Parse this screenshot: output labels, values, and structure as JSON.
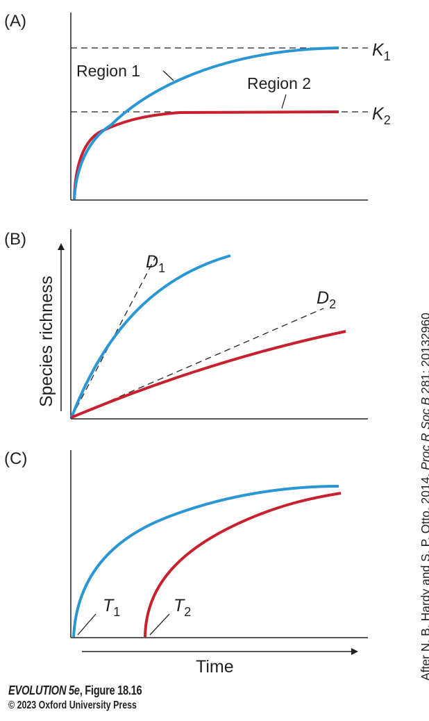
{
  "panels": {
    "a": {
      "tag": "(A)",
      "k1": "K",
      "k1_sub": "1",
      "k2": "K",
      "k2_sub": "2",
      "region1": "Region 1",
      "region2": "Region 2"
    },
    "b": {
      "tag": "(B)",
      "ylabel": "Species richness",
      "d1": "D",
      "d1_sub": "1",
      "d2": "D",
      "d2_sub": "2"
    },
    "c": {
      "tag": "(C)",
      "xlabel": "Time",
      "t1": "T",
      "t1_sub": "1",
      "t2": "T",
      "t2_sub": "2"
    }
  },
  "colors": {
    "region1": "#2a96d4",
    "region2": "#c8202f",
    "axis": "#231f20"
  },
  "footer": {
    "book": "EVOLUTION 5e",
    "figure": ", Figure 18.16",
    "copyright": "© 2023 Oxford University Press"
  },
  "credit": {
    "authors": "After N. B. Hardy and S. P. Otto. 2014. ",
    "journal": "Proc R Soc B",
    "ref": " 281: 20132960"
  }
}
